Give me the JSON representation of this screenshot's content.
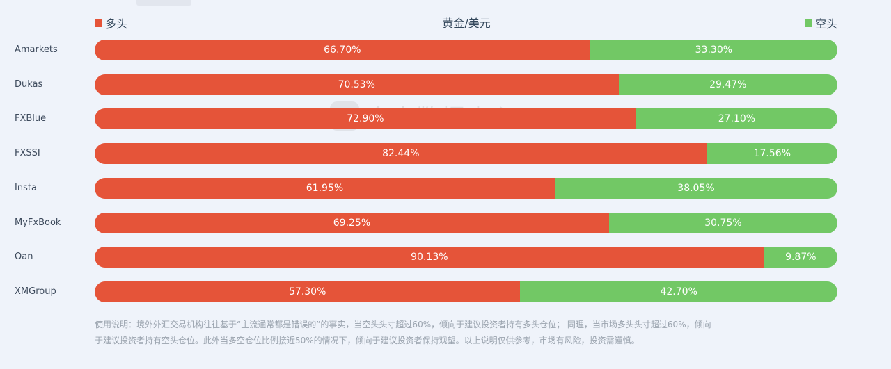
{
  "legend": {
    "long_label": "多头",
    "short_label": "空头"
  },
  "watermark_text": "金十数据中心",
  "note": {
    "line1": "使用说明：境外外汇交易机构往往基于“主流通常都是错误的”的事实，当空头头寸超过60%，倾向于建议投资者持有多头仓位； 同理，当市场多头头寸超过60%，倾向",
    "line2": "于建议投资者持有空头仓位。此外当多空仓位比例接近50%的情况下，倾向于建议投资者保持观望。以上说明仅供参考，市场有风险，投资需谨慎。"
  },
  "chart_data": {
    "type": "bar",
    "stacked": "percent",
    "orientation": "horizontal",
    "title": "黄金/美元",
    "categories": [
      "Amarkets",
      "Dukas",
      "FXBlue",
      "FXSSI",
      "Insta",
      "MyFxBook",
      "Oan",
      "XMGroup"
    ],
    "series": [
      {
        "name": "多头",
        "color": "#e55439",
        "values": [
          66.7,
          70.53,
          72.9,
          82.44,
          61.95,
          69.25,
          90.13,
          57.3
        ],
        "labels": [
          "66.70%",
          "70.53%",
          "72.90%",
          "82.44%",
          "61.95%",
          "69.25%",
          "90.13%",
          "57.30%"
        ]
      },
      {
        "name": "空头",
        "color": "#72c865",
        "values": [
          33.3,
          29.47,
          27.1,
          17.56,
          38.05,
          30.75,
          9.87,
          42.7
        ],
        "labels": [
          "33.30%",
          "29.47%",
          "27.10%",
          "17.56%",
          "38.05%",
          "30.75%",
          "9.87%",
          "42.70%"
        ]
      }
    ],
    "xlim": [
      0,
      100
    ],
    "legend_position": "top"
  }
}
